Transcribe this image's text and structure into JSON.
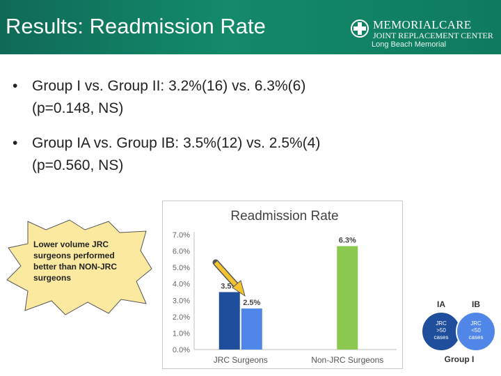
{
  "header": {
    "title": "Results: Readmission Rate"
  },
  "logo": {
    "name": "MEMORIALCARE",
    "sub": "JOINT REPLACEMENT CENTER",
    "location": "Long Beach Memorial"
  },
  "bullets": [
    {
      "line1": "Group I vs. Group II: 3.2%(16) vs. 6.3%(6)",
      "line2": "(p=0.148, NS)"
    },
    {
      "line1": "Group IA vs. Group IB: 3.5%(12) vs. 2.5%(4)",
      "line2": "(p=0.560, NS)"
    }
  ],
  "callout": {
    "text": "Lower volume JRC surgeons performed better than NON-JRC surgeons"
  },
  "chart_data": {
    "type": "bar",
    "title": "Readmission Rate",
    "categories": [
      "JRC Surgeons",
      "Non-JRC Surgeons"
    ],
    "bars": [
      {
        "category": "JRC Surgeons",
        "value": 3.5,
        "label": "3.5%",
        "color": "#1f4e9c"
      },
      {
        "category": "JRC Surgeons",
        "value": 2.5,
        "label": "2.5%",
        "color": "#4f86e8"
      },
      {
        "category": "Non-JRC Surgeons",
        "value": 6.3,
        "label": "6.3%",
        "color": "#8ac84f"
      }
    ],
    "ylim": [
      0,
      7
    ],
    "yticks": [
      "0.0%",
      "1.0%",
      "2.0%",
      "3.0%",
      "4.0%",
      "5.0%",
      "6.0%",
      "7.0%"
    ],
    "grid": false
  },
  "groups": {
    "ia_label": "IA",
    "ib_label": "IB",
    "ia_text": [
      "JRC",
      ">50",
      "cases"
    ],
    "ib_text": [
      "JRC",
      "<50",
      "cases"
    ],
    "group_label": "Group I",
    "colors": {
      "ia": "#1f4e9c",
      "ib": "#4f86e8"
    }
  }
}
